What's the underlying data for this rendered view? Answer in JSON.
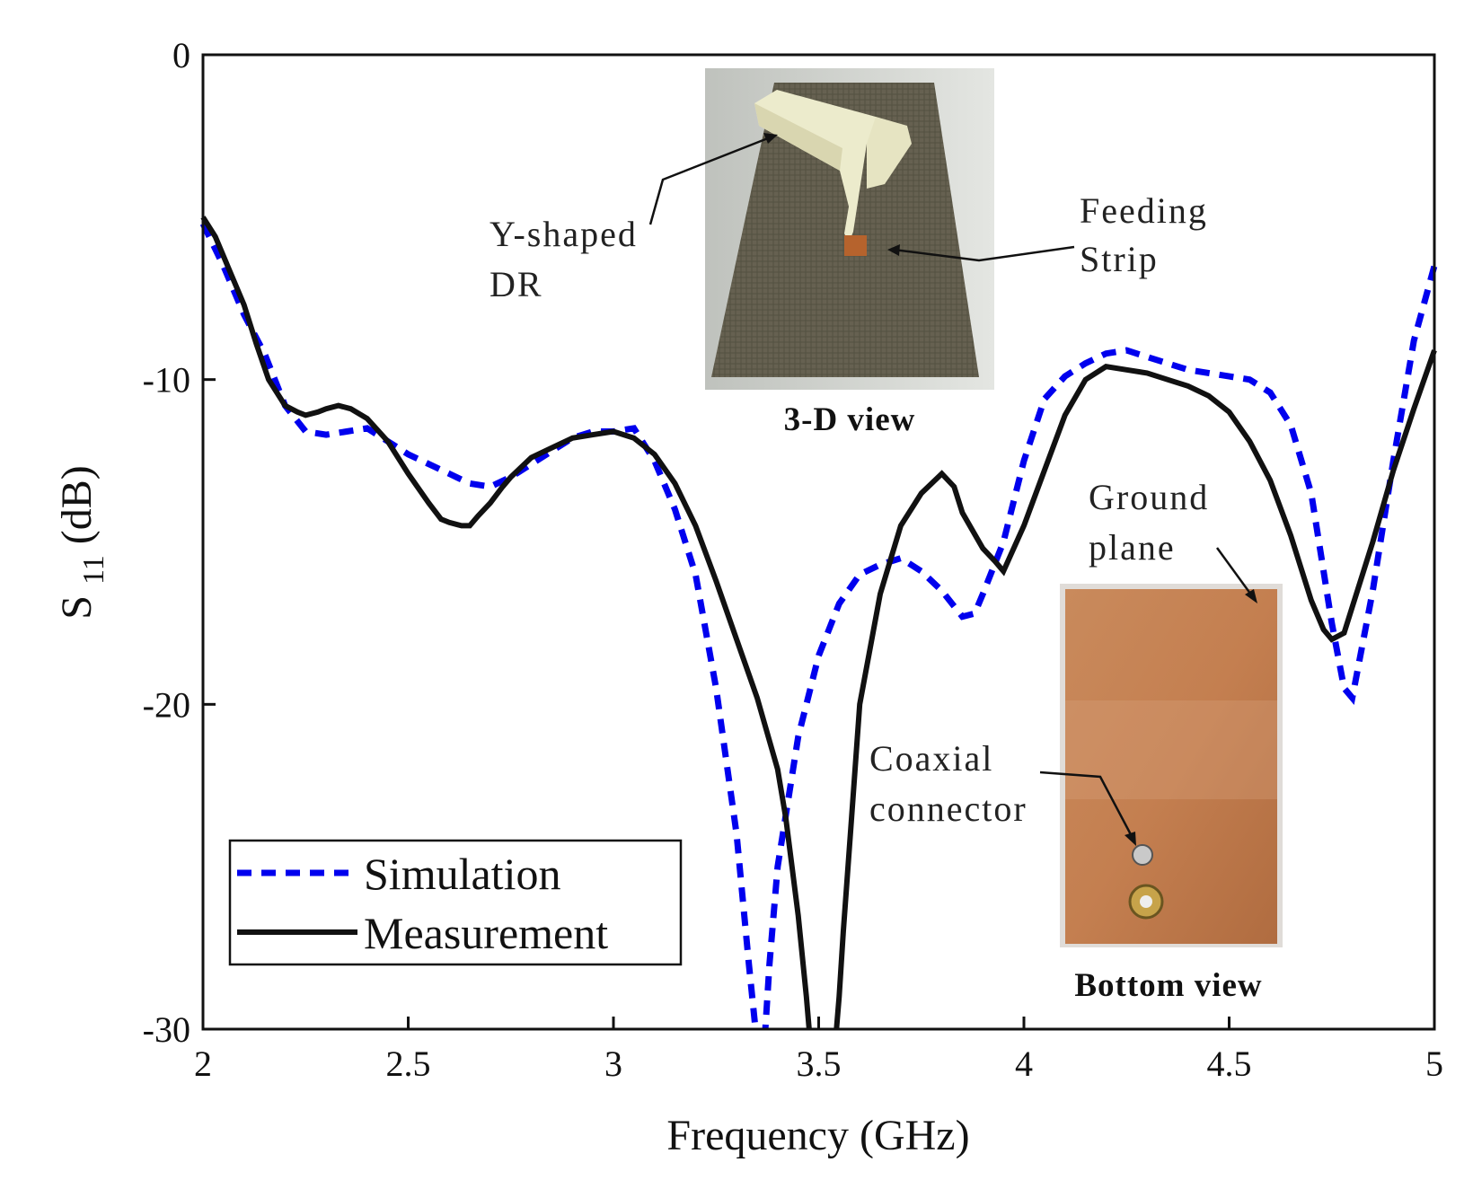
{
  "chart_data": {
    "type": "line",
    "title": "",
    "xlabel": "Frequency (GHz)",
    "ylabel_main": "S",
    "ylabel_sub": "11",
    "ylabel_unit": "(dB)",
    "xlim": [
      2,
      5
    ],
    "ylim": [
      -30,
      0
    ],
    "xticks": [
      2,
      2.5,
      3,
      3.5,
      4,
      4.5,
      5
    ],
    "xtick_labels": [
      "2",
      "2.5",
      "3",
      "3.5",
      "4",
      "4.5",
      "5"
    ],
    "yticks": [
      0,
      -10,
      -20,
      -30
    ],
    "ytick_labels": [
      "0",
      "-10",
      "-20",
      "-30"
    ],
    "grid": false,
    "legend_position": "bottom-left",
    "series": [
      {
        "name": "Simulation",
        "style": "dashed",
        "color": "#0000ee",
        "x": [
          2.0,
          2.05,
          2.1,
          2.15,
          2.2,
          2.25,
          2.3,
          2.35,
          2.4,
          2.45,
          2.5,
          2.55,
          2.6,
          2.65,
          2.7,
          2.75,
          2.8,
          2.85,
          2.9,
          2.95,
          3.0,
          3.05,
          3.1,
          3.15,
          3.2,
          3.25,
          3.3,
          3.33,
          3.35,
          3.36,
          3.37,
          3.38,
          3.4,
          3.45,
          3.5,
          3.55,
          3.6,
          3.65,
          3.7,
          3.75,
          3.8,
          3.85,
          3.88,
          3.9,
          3.95,
          4.0,
          4.05,
          4.1,
          4.15,
          4.2,
          4.25,
          4.3,
          4.35,
          4.4,
          4.45,
          4.5,
          4.55,
          4.6,
          4.65,
          4.7,
          4.75,
          4.78,
          4.8,
          4.85,
          4.9,
          4.95,
          5.0
        ],
        "y": [
          -5.2,
          -6.5,
          -8.0,
          -9.2,
          -10.8,
          -11.6,
          -11.7,
          -11.6,
          -11.5,
          -11.9,
          -12.3,
          -12.6,
          -12.9,
          -13.2,
          -13.3,
          -13.0,
          -12.6,
          -12.2,
          -11.8,
          -11.6,
          -11.6,
          -11.5,
          -12.5,
          -14.0,
          -16.0,
          -19.5,
          -24.0,
          -28.0,
          -30.5,
          -30.5,
          -30.0,
          -28.0,
          -25.0,
          -21.0,
          -18.5,
          -16.9,
          -16.0,
          -15.7,
          -15.5,
          -15.9,
          -16.5,
          -17.3,
          -17.2,
          -16.6,
          -15.0,
          -12.5,
          -10.6,
          -9.9,
          -9.5,
          -9.2,
          -9.1,
          -9.3,
          -9.5,
          -9.7,
          -9.8,
          -9.9,
          -10.0,
          -10.4,
          -11.4,
          -13.5,
          -17.5,
          -19.5,
          -19.8,
          -16.5,
          -12.5,
          -8.8,
          -6.5
        ]
      },
      {
        "name": "Measurement",
        "style": "solid",
        "color": "#111111",
        "x": [
          2.0,
          2.03,
          2.06,
          2.1,
          2.13,
          2.16,
          2.2,
          2.23,
          2.25,
          2.28,
          2.3,
          2.33,
          2.36,
          2.4,
          2.45,
          2.5,
          2.55,
          2.58,
          2.6,
          2.63,
          2.65,
          2.67,
          2.7,
          2.73,
          2.75,
          2.8,
          2.85,
          2.9,
          2.95,
          3.0,
          3.05,
          3.1,
          3.15,
          3.2,
          3.25,
          3.3,
          3.35,
          3.4,
          3.42,
          3.45,
          3.47,
          3.48,
          3.5,
          3.52,
          3.54,
          3.55,
          3.56,
          3.58,
          3.6,
          3.65,
          3.7,
          3.75,
          3.8,
          3.83,
          3.85,
          3.9,
          3.93,
          3.95,
          4.0,
          4.05,
          4.1,
          4.15,
          4.2,
          4.25,
          4.3,
          4.35,
          4.4,
          4.45,
          4.5,
          4.55,
          4.6,
          4.65,
          4.7,
          4.73,
          4.75,
          4.78,
          4.8,
          4.85,
          4.9,
          4.95,
          5.0
        ],
        "y": [
          -5.0,
          -5.6,
          -6.5,
          -7.7,
          -8.9,
          -10.0,
          -10.8,
          -11.0,
          -11.1,
          -11.0,
          -10.9,
          -10.8,
          -10.9,
          -11.2,
          -11.9,
          -12.9,
          -13.8,
          -14.3,
          -14.4,
          -14.5,
          -14.5,
          -14.2,
          -13.8,
          -13.3,
          -13.0,
          -12.4,
          -12.1,
          -11.8,
          -11.7,
          -11.6,
          -11.8,
          -12.3,
          -13.2,
          -14.5,
          -16.2,
          -18.0,
          -19.8,
          -22.0,
          -23.5,
          -26.5,
          -29.0,
          -30.5,
          -31.5,
          -31.5,
          -30.5,
          -29.0,
          -27.0,
          -23.5,
          -20.0,
          -16.6,
          -14.5,
          -13.5,
          -12.9,
          -13.3,
          -14.1,
          -15.2,
          -15.6,
          -15.9,
          -14.5,
          -12.8,
          -11.1,
          -10.0,
          -9.6,
          -9.7,
          -9.8,
          -10.0,
          -10.2,
          -10.5,
          -11.0,
          -11.9,
          -13.1,
          -14.8,
          -16.8,
          -17.7,
          -18.0,
          -17.8,
          -17.0,
          -15.0,
          -12.8,
          -10.9,
          -9.1
        ]
      }
    ]
  },
  "insets": {
    "top_photo": {
      "caption": "3-D view",
      "label_dr_line1": "Y-shaped",
      "label_dr_line2": "DR",
      "label_feed_line1": "Feeding",
      "label_feed_line2": "Strip"
    },
    "bottom_photo": {
      "caption": "Bottom view",
      "label_ground_line1": "Ground",
      "label_ground_line2": "plane",
      "label_coax_line1": "Coaxial",
      "label_coax_line2": "connector"
    }
  }
}
